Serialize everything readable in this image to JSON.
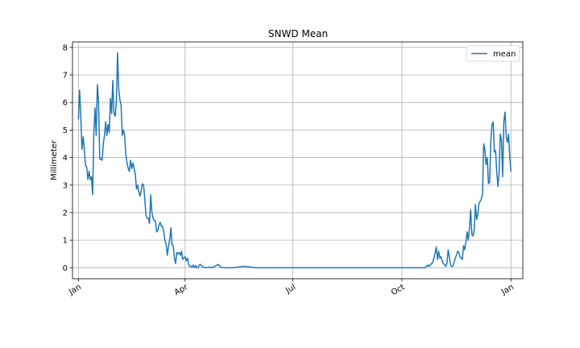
{
  "chart_data": {
    "type": "line",
    "title": "SNWD Mean",
    "xlabel": "",
    "ylabel": "Millimeter",
    "grid": true,
    "legend": "top-right",
    "xlim": [
      -5,
      375
    ],
    "ylim": [
      -0.4,
      8.2
    ],
    "x_unit": "day of year",
    "x_ticks": [
      {
        "label": "Jan",
        "day": 0
      },
      {
        "label": "Apr",
        "day": 90
      },
      {
        "label": "Jul",
        "day": 181
      },
      {
        "label": "Oct",
        "day": 273
      },
      {
        "label": "Jan",
        "day": 365
      }
    ],
    "y_ticks": [
      0,
      1,
      2,
      3,
      4,
      5,
      6,
      7,
      8
    ],
    "colors": {
      "mean": "#1f77b4"
    },
    "series": [
      {
        "name": "mean",
        "color": "#1f77b4",
        "x": [
          0,
          1,
          2,
          3,
          4,
          5,
          6,
          7,
          8,
          9,
          10,
          11,
          12,
          13,
          14,
          15,
          16,
          17,
          18,
          19,
          20,
          21,
          22,
          23,
          24,
          25,
          26,
          27,
          28,
          29,
          30,
          31,
          32,
          33,
          34,
          35,
          36,
          37,
          38,
          39,
          40,
          41,
          42,
          43,
          44,
          45,
          46,
          47,
          48,
          49,
          50,
          51,
          52,
          53,
          54,
          55,
          56,
          57,
          58,
          59,
          60,
          61,
          62,
          63,
          64,
          65,
          66,
          67,
          68,
          69,
          70,
          71,
          72,
          73,
          74,
          75,
          76,
          77,
          78,
          79,
          80,
          81,
          82,
          83,
          84,
          85,
          86,
          87,
          88,
          89,
          90,
          91,
          92,
          93,
          94,
          95,
          96,
          97,
          98,
          99,
          100,
          101,
          102,
          103,
          105,
          108,
          110,
          113,
          115,
          118,
          120,
          123,
          125,
          130,
          140,
          150,
          160,
          200,
          220,
          250,
          280,
          285,
          288,
          290,
          292,
          293,
          294,
          295,
          296,
          297,
          298,
          299,
          300,
          301,
          302,
          303,
          304,
          305,
          306,
          307,
          308,
          309,
          310,
          311,
          312,
          313,
          314,
          315,
          316,
          317,
          318,
          319,
          320,
          321,
          322,
          323,
          324,
          325,
          326,
          327,
          328,
          329,
          330,
          331,
          332,
          333,
          334,
          335,
          336,
          337,
          338,
          339,
          340,
          341,
          342,
          343,
          344,
          345,
          346,
          347,
          348,
          349,
          350,
          351,
          352,
          353,
          354,
          355,
          356,
          357,
          358,
          359,
          360,
          361,
          362,
          363,
          364,
          365
        ],
        "y": [
          5.4,
          6.45,
          5.5,
          4.3,
          4.75,
          4.3,
          3.7,
          3.65,
          3.2,
          3.5,
          3.2,
          3.3,
          2.65,
          4.9,
          5.8,
          4.8,
          6.65,
          6.0,
          3.95,
          3.95,
          3.9,
          4.5,
          4.8,
          5.3,
          4.8,
          5.2,
          4.9,
          6.15,
          5.6,
          6.8,
          5.6,
          5.5,
          6.0,
          7.8,
          6.5,
          6.1,
          5.9,
          4.8,
          5.0,
          4.8,
          4.1,
          3.8,
          3.6,
          3.5,
          3.9,
          3.6,
          3.8,
          3.6,
          3.4,
          2.85,
          3.0,
          2.75,
          2.6,
          2.8,
          3.05,
          3.0,
          2.5,
          1.9,
          1.8,
          1.8,
          1.6,
          2.65,
          2.0,
          1.8,
          1.7,
          1.7,
          1.3,
          1.35,
          1.55,
          1.65,
          1.5,
          1.5,
          1.3,
          1.0,
          0.85,
          0.45,
          0.8,
          1.0,
          1.45,
          0.85,
          0.8,
          0.35,
          0.15,
          0.55,
          0.5,
          0.55,
          0.45,
          0.6,
          0.3,
          0.35,
          0.4,
          0.25,
          0.35,
          0.1,
          0.05,
          0.05,
          0.02,
          0.1,
          0.0,
          0.08,
          0.0,
          0.0,
          0.1,
          0.12,
          0.02,
          0.0,
          0.02,
          0.0,
          0.05,
          0.12,
          0.02,
          0.0,
          0.0,
          0.0,
          0.05,
          0.0,
          0.0,
          0.0,
          0.0,
          0.0,
          0.0,
          0.0,
          0.0,
          0.0,
          0.0,
          0.02,
          0.05,
          0.1,
          0.05,
          0.1,
          0.15,
          0.2,
          0.35,
          0.55,
          0.75,
          0.3,
          0.6,
          0.35,
          0.4,
          0.25,
          0.15,
          0.1,
          0.05,
          0.15,
          0.65,
          0.4,
          0.1,
          0.05,
          0.05,
          0.2,
          0.35,
          0.45,
          0.6,
          0.55,
          0.4,
          0.35,
          0.3,
          0.8,
          0.65,
          0.95,
          1.3,
          1.0,
          1.45,
          2.1,
          1.2,
          1.15,
          1.4,
          2.3,
          1.75,
          1.9,
          2.35,
          2.4,
          2.5,
          2.65,
          4.5,
          4.3,
          3.75,
          4.0,
          3.05,
          3.1,
          4.6,
          5.2,
          5.3,
          4.2,
          4.25,
          3.5,
          2.95,
          3.4,
          4.85,
          4.65,
          3.3,
          5.3,
          5.65,
          4.75,
          4.55,
          4.85,
          4.0,
          3.5
        ]
      }
    ]
  }
}
